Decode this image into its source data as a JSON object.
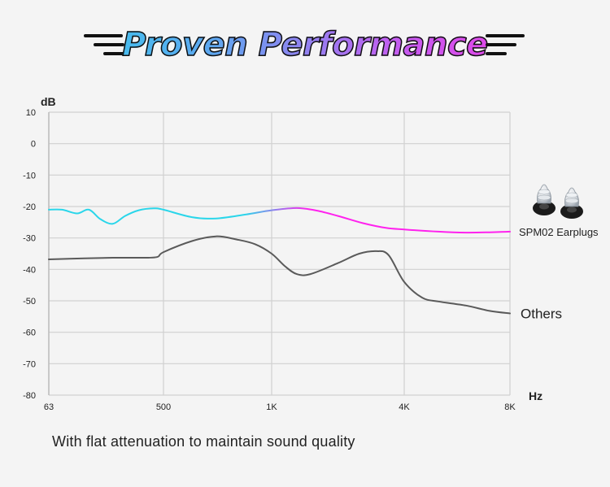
{
  "header": {
    "title": "Proven Performance"
  },
  "caption": "With flat attenuation to maintain sound quality",
  "chart_data": {
    "type": "line",
    "ylabel": "dB",
    "xlabel": "Hz",
    "ylim": [
      -80,
      10
    ],
    "yticks": [
      10,
      0,
      -10,
      -20,
      -30,
      -40,
      -50,
      -60,
      -70,
      -80
    ],
    "xtick_labels": [
      "63",
      "500",
      "1K",
      "4K",
      "8K"
    ],
    "grid": true,
    "series": [
      {
        "name": "SPM02 Earplugs",
        "color_start": "#2ad6ea",
        "color_end": "#ff22ee",
        "x_hz": [
          63,
          80,
          105,
          130,
          160,
          200,
          250,
          320,
          420,
          500,
          600,
          700,
          850,
          1000,
          1300,
          1600,
          2000,
          2600,
          3300,
          4000,
          5000,
          6000,
          7000,
          8000
        ],
        "values": [
          -21,
          -21,
          -22.2,
          -21,
          -24,
          -25.5,
          -23,
          -21.2,
          -20.6,
          -21,
          -23.4,
          -23.8,
          -22.5,
          -21.2,
          -20.5,
          -21.3,
          -23,
          -25.3,
          -26.8,
          -27.3,
          -28,
          -28.3,
          -28.2,
          -28
        ]
      },
      {
        "name": "Others",
        "color": "#5a5a5a",
        "x_hz": [
          63,
          120,
          200,
          300,
          440,
          500,
          600,
          700,
          800,
          900,
          1000,
          1150,
          1300,
          1500,
          2000,
          2500,
          3000,
          3400,
          4000,
          4500,
          5000,
          6000,
          7000,
          8000
        ],
        "values": [
          -36.8,
          -36.5,
          -36.3,
          -36.3,
          -36.1,
          -34.5,
          -31,
          -29.5,
          -30.5,
          -32,
          -35,
          -39,
          -41.5,
          -41.5,
          -38,
          -35,
          -34.2,
          -35.5,
          -44,
          -49,
          -50.2,
          -51.5,
          -53.2,
          -54
        ]
      }
    ],
    "product_image_label": "SPM02 Earplugs"
  }
}
